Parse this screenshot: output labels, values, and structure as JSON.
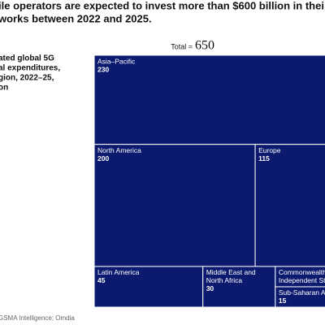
{
  "title_lines": [
    "ile operators are expected to invest more than $600 billion in thei",
    "works between 2022 and 2025."
  ],
  "subtitle_lines": [
    "ated global 5G",
    "al expenditures,",
    "gion, 2022–25,",
    "on"
  ],
  "source": "GSMA Intelligence; Omdia",
  "chart_data": {
    "type": "treemap",
    "total_label": "Total =",
    "total": 650,
    "color": "#0b1a6e",
    "categories": [
      [
        "Asia–Pacific"
      ],
      [
        "North America"
      ],
      [
        "Europe"
      ],
      [
        "Latin America"
      ],
      [
        "Middle East and",
        "North Africa"
      ],
      [
        "Commonwealth o",
        "Independent Sta"
      ],
      [
        "Sub-Saharan Afr"
      ]
    ],
    "values": [
      230,
      200,
      115,
      45,
      30,
      15,
      15
    ],
    "printed_values": [
      true,
      true,
      true,
      true,
      true,
      false,
      true
    ]
  }
}
